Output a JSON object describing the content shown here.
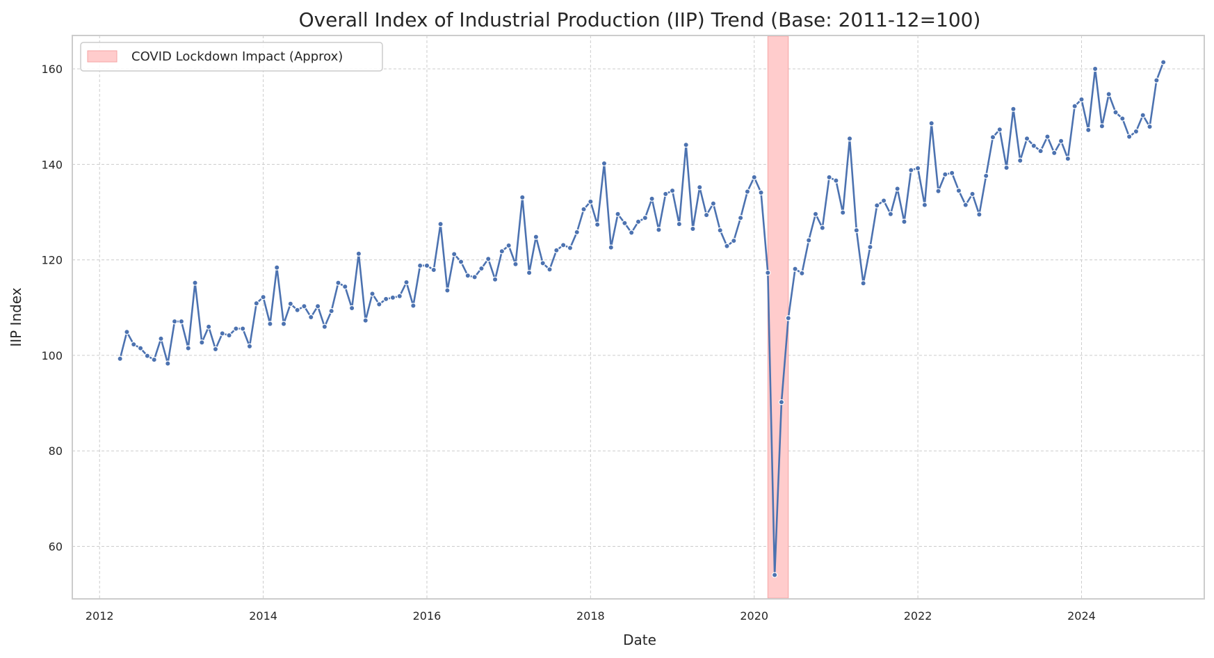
{
  "chart_data": {
    "type": "line",
    "title": "Overall Index of Industrial Production (IIP) Trend (Base: 2011-12=100)",
    "xlabel": "Date",
    "ylabel": "IIP Index",
    "xlim": [
      "2011-09",
      "2025-07"
    ],
    "ylim": [
      49,
      167
    ],
    "x_ticks": [
      "2012",
      "2014",
      "2016",
      "2018",
      "2020",
      "2022",
      "2024"
    ],
    "y_ticks": [
      60,
      80,
      100,
      120,
      140,
      160
    ],
    "grid": true,
    "legend_position": "top-left",
    "shaded_region": {
      "label": "COVID Lockdown Impact (Approx)",
      "start": "2020-03",
      "end": "2020-06",
      "color": "#ffcccc"
    },
    "series": [
      {
        "color": "#4c72b0",
        "start": "2012-04",
        "frequency": "monthly",
        "values": [
          99.3,
          104.9,
          102.3,
          101.5,
          99.9,
          99.1,
          103.5,
          98.3,
          107.1,
          107.1,
          101.5,
          115.2,
          102.7,
          106.0,
          101.3,
          104.6,
          104.2,
          105.6,
          105.6,
          101.9,
          110.9,
          112.2,
          106.6,
          118.4,
          106.6,
          110.8,
          109.5,
          110.3,
          108.0,
          110.3,
          106.0,
          109.3,
          115.2,
          114.4,
          109.9,
          121.3,
          107.3,
          112.9,
          110.7,
          111.8,
          112.1,
          112.4,
          115.3,
          110.4,
          118.8,
          118.8,
          117.9,
          127.5,
          113.6,
          121.2,
          119.6,
          116.7,
          116.4,
          118.2,
          120.2,
          115.9,
          121.8,
          123.0,
          119.1,
          133.1,
          117.3,
          124.8,
          119.3,
          118.0,
          122.0,
          123.1,
          122.5,
          125.8,
          130.6,
          132.2,
          127.4,
          140.2,
          122.6,
          129.6,
          127.7,
          125.7,
          128.0,
          128.8,
          132.8,
          126.3,
          133.8,
          134.5,
          127.5,
          144.1,
          126.5,
          135.2,
          129.4,
          131.8,
          126.2,
          122.9,
          124.0,
          128.8,
          134.3,
          137.3,
          134.1,
          117.3,
          54.0,
          90.2,
          107.8,
          118.1,
          117.2,
          124.1,
          129.6,
          126.7,
          137.3,
          136.6,
          129.9,
          145.4,
          126.2,
          115.1,
          122.7,
          131.4,
          132.4,
          129.6,
          134.9,
          128.0,
          138.8,
          139.2,
          131.5,
          148.6,
          134.4,
          137.9,
          138.2,
          134.5,
          131.5,
          133.8,
          129.5,
          137.6,
          145.7,
          147.3,
          139.3,
          151.6,
          140.8,
          145.4,
          143.9,
          142.8,
          145.8,
          142.4,
          144.9,
          141.2,
          152.2,
          153.6,
          147.2,
          160.0,
          148.0,
          154.7,
          150.9,
          149.6,
          145.8,
          146.9,
          150.3,
          147.9,
          157.6,
          161.4
        ]
      }
    ]
  }
}
